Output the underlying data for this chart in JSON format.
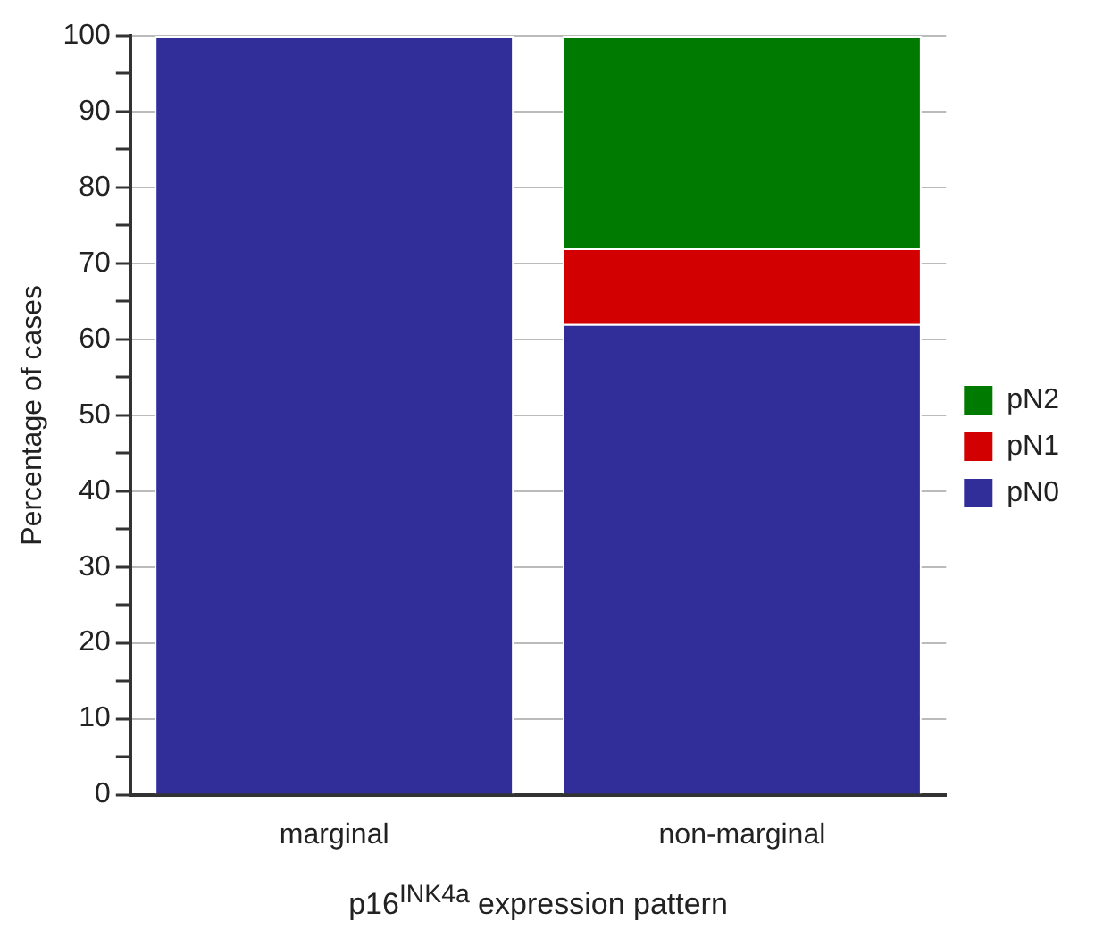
{
  "chart_data": {
    "type": "bar",
    "stacked": true,
    "xlabel": "p16$^{INK4a}$ expression pattern",
    "ylabel": "Percentage of cases",
    "categories": [
      "marginal",
      "non-marginal"
    ],
    "series": [
      {
        "name": "pN0",
        "color": "#312e9a",
        "values": [
          100,
          62
        ]
      },
      {
        "name": "pN1",
        "color": "#d20000",
        "values": [
          0,
          10
        ]
      },
      {
        "name": "pN2",
        "color": "#007a00",
        "values": [
          0,
          28
        ]
      }
    ],
    "ylim": [
      0,
      100
    ],
    "yticks": [
      0,
      {
        "value": 5,
        "label": null
      },
      10,
      {
        "value": 15,
        "label": null
      },
      20,
      {
        "value": 25,
        "label": null
      },
      30,
      {
        "value": 35,
        "label": null
      },
      40,
      {
        "value": 45,
        "label": null
      },
      50,
      {
        "value": 55,
        "label": null
      },
      60,
      {
        "value": 65,
        "label": null
      },
      70,
      {
        "value": 75,
        "label": null
      },
      80,
      {
        "value": 85,
        "label": null
      },
      90,
      {
        "value": 95,
        "label": null
      },
      100
    ],
    "grid": "y",
    "legend": "right"
  }
}
